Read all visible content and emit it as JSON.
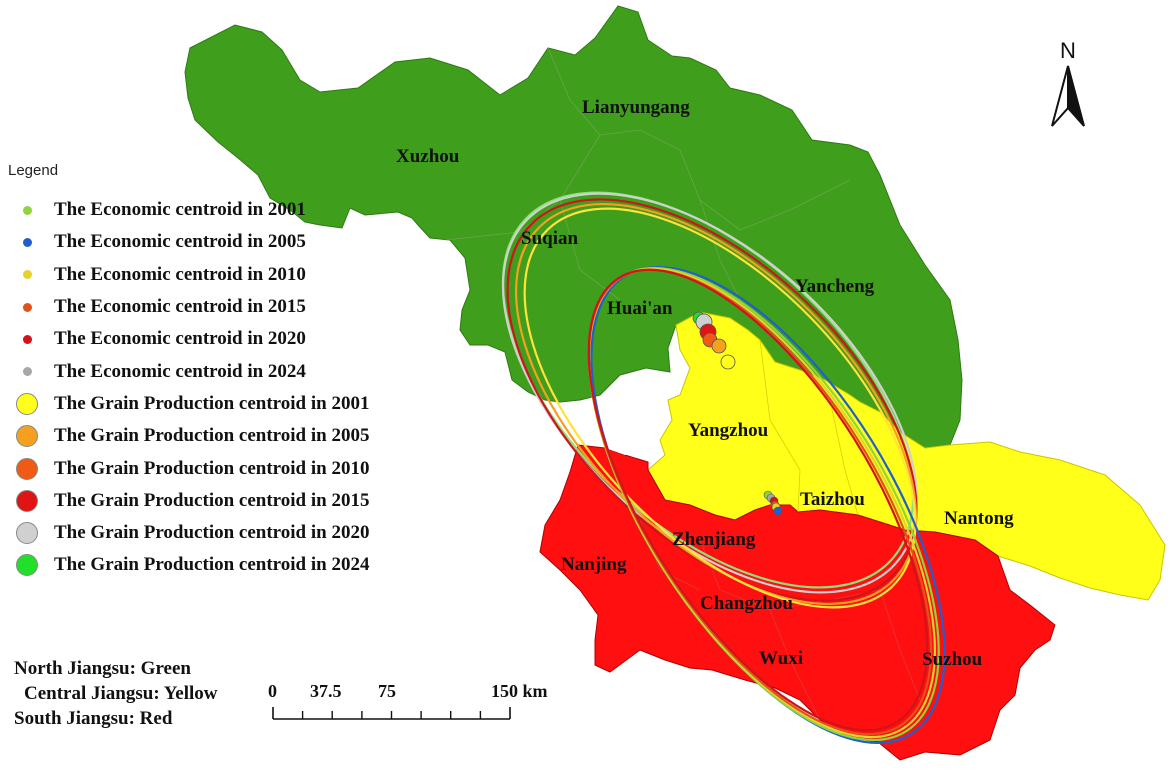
{
  "north_arrow": {
    "label": "N",
    "icon": "north-arrow-icon"
  },
  "cities": [
    {
      "id": "lianyungang",
      "name": "Lianyungang"
    },
    {
      "id": "xuzhou",
      "name": "Xuzhou"
    },
    {
      "id": "suqian",
      "name": "Suqian"
    },
    {
      "id": "yancheng",
      "name": "Yancheng"
    },
    {
      "id": "huaian",
      "name": "Huai'an"
    },
    {
      "id": "yangzhou",
      "name": "Yangzhou"
    },
    {
      "id": "taizhou",
      "name": "Taizhou"
    },
    {
      "id": "nantong",
      "name": "Nantong"
    },
    {
      "id": "zhenjiang",
      "name": "Zhenjiang"
    },
    {
      "id": "nanjing",
      "name": "Nanjing"
    },
    {
      "id": "changzhou",
      "name": "Changzhou"
    },
    {
      "id": "wuxi",
      "name": "Wuxi"
    },
    {
      "id": "suzhou",
      "name": "Suzhou"
    }
  ],
  "legend": {
    "title": "Legend",
    "items": [
      {
        "label": "The Economic centroid in 2001",
        "color": "#8fd43a",
        "kind": "economic"
      },
      {
        "label": "The Economic centroid in 2005",
        "color": "#1f5fd0",
        "kind": "economic"
      },
      {
        "label": "The Economic centroid in 2010",
        "color": "#e6d22c",
        "kind": "economic"
      },
      {
        "label": "The Economic centroid in 2015",
        "color": "#e0531c",
        "kind": "economic"
      },
      {
        "label": "The Economic centroid in 2020",
        "color": "#d0141a",
        "kind": "economic"
      },
      {
        "label": "The Economic centroid in 2024",
        "color": "#a8a8a8",
        "kind": "economic"
      },
      {
        "label": "The Grain Production  centroid in 2001",
        "color": "#ffff1a",
        "kind": "grain"
      },
      {
        "label": "The Grain Production  centroid in 2005",
        "color": "#f6a020",
        "kind": "grain"
      },
      {
        "label": "The Grain Production  centroid in 2010",
        "color": "#f05a14",
        "kind": "grain"
      },
      {
        "label": "The Grain Production  centroid in 2015",
        "color": "#e01414",
        "kind": "grain"
      },
      {
        "label": "The Grain Production  centroid in 2020",
        "color": "#d0d0d0",
        "kind": "grain"
      },
      {
        "label": "The Grain Production  centroid in 2024",
        "color": "#22e02a",
        "kind": "grain"
      }
    ]
  },
  "regions": [
    "North Jiangsu: Green",
    "Central Jiangsu: Yellow",
    "South Jiangsu: Red"
  ],
  "region_colors": {
    "north": "#3f9e1c",
    "central": "#ffff1a",
    "south": "#ff0f0f"
  },
  "scale_bar": {
    "ticks": [
      "0",
      "37.5",
      "75",
      "150 km"
    ]
  }
}
